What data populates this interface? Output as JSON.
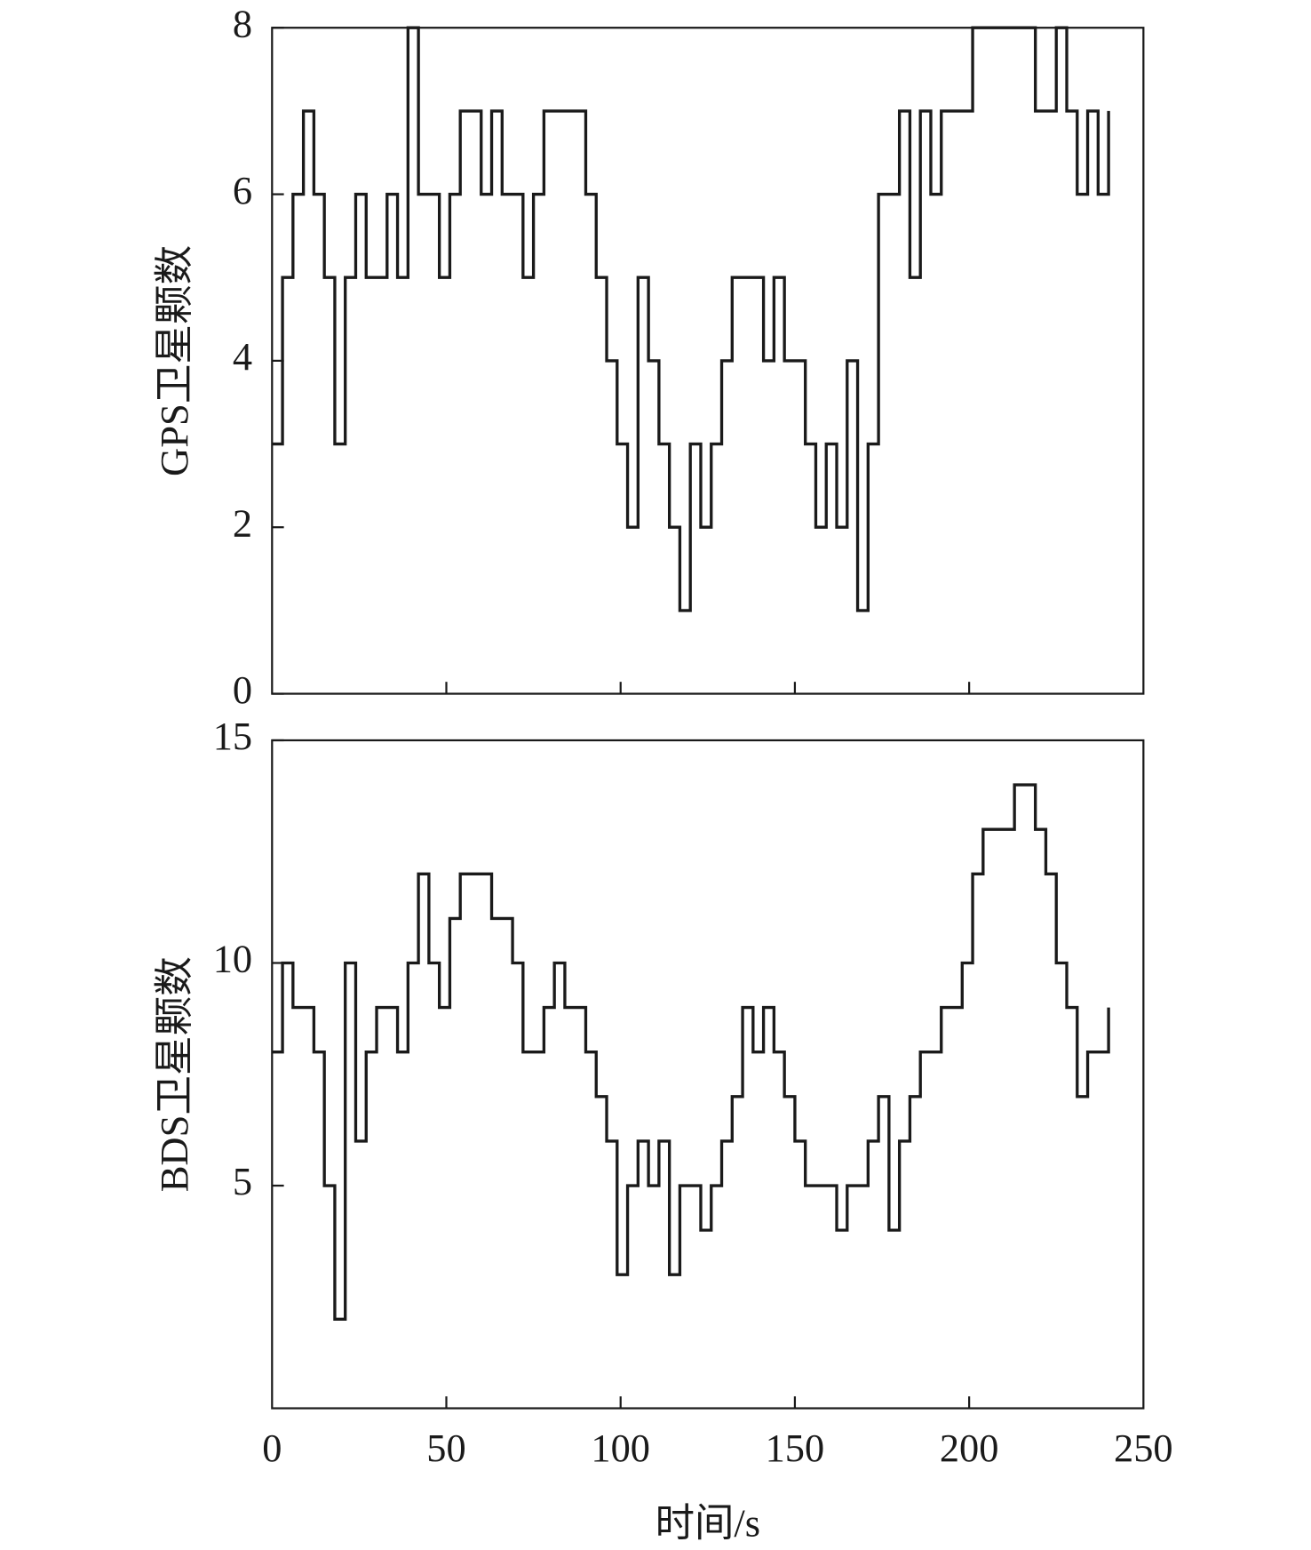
{
  "chart_data": [
    {
      "type": "step",
      "y_label": "GPS卫星颗数",
      "xlim": [
        0,
        250
      ],
      "ylim": [
        0,
        8
      ],
      "yticks": [
        0,
        2,
        4,
        6,
        8
      ],
      "series": [
        {
          "color": "#1a1a1a",
          "x": [
            0,
            3,
            6,
            9,
            12,
            15,
            18,
            21,
            24,
            27,
            30,
            33,
            36,
            39,
            42,
            45,
            48,
            51,
            54,
            57,
            60,
            63,
            66,
            69,
            72,
            75,
            78,
            81,
            84,
            87,
            90,
            93,
            96,
            99,
            102,
            105,
            108,
            111,
            114,
            117,
            120,
            123,
            126,
            129,
            132,
            135,
            138,
            141,
            144,
            147,
            150,
            153,
            156,
            159,
            162,
            165,
            168,
            171,
            174,
            177,
            180,
            183,
            186,
            189,
            192,
            195,
            198,
            201,
            204,
            207,
            210,
            213,
            216,
            219,
            222,
            225,
            228,
            231,
            234,
            237,
            240
          ],
          "values": [
            3,
            5,
            6,
            7,
            6,
            5,
            3,
            5,
            6,
            5,
            5,
            6,
            5,
            8,
            6,
            6,
            5,
            6,
            7,
            7,
            6,
            7,
            6,
            6,
            5,
            6,
            7,
            7,
            7,
            7,
            6,
            5,
            4,
            3,
            2,
            5,
            4,
            3,
            2,
            1,
            3,
            2,
            3,
            4,
            5,
            5,
            5,
            4,
            5,
            4,
            4,
            3,
            2,
            3,
            2,
            4,
            1,
            3,
            6,
            6,
            7,
            5,
            7,
            6,
            7,
            7,
            7,
            8,
            8,
            8,
            8,
            8,
            8,
            7,
            7,
            8,
            7,
            6,
            7,
            6,
            7
          ]
        }
      ]
    },
    {
      "type": "step",
      "y_label": "BDS卫星颗数",
      "x_label": "时间/s",
      "xlim": [
        0,
        250
      ],
      "ylim": [
        0,
        15
      ],
      "xticks": [
        0,
        50,
        100,
        150,
        200,
        250
      ],
      "yticks": [
        5,
        10,
        15
      ],
      "series": [
        {
          "color": "#1a1a1a",
          "x": [
            0,
            3,
            6,
            9,
            12,
            15,
            18,
            21,
            24,
            27,
            30,
            33,
            36,
            39,
            42,
            45,
            48,
            51,
            54,
            57,
            60,
            63,
            66,
            69,
            72,
            75,
            78,
            81,
            84,
            87,
            90,
            93,
            96,
            99,
            102,
            105,
            108,
            111,
            114,
            117,
            120,
            123,
            126,
            129,
            132,
            135,
            138,
            141,
            144,
            147,
            150,
            153,
            156,
            159,
            162,
            165,
            168,
            171,
            174,
            177,
            180,
            183,
            186,
            189,
            192,
            195,
            198,
            201,
            204,
            207,
            210,
            213,
            216,
            219,
            222,
            225,
            228,
            231,
            234,
            237,
            240
          ],
          "values": [
            8,
            10,
            9,
            9,
            8,
            5,
            2,
            10,
            6,
            8,
            9,
            9,
            8,
            10,
            12,
            10,
            9,
            11,
            12,
            12,
            12,
            11,
            11,
            10,
            8,
            8,
            9,
            10,
            9,
            9,
            8,
            7,
            6,
            3,
            5,
            6,
            5,
            6,
            3,
            5,
            5,
            4,
            5,
            6,
            7,
            9,
            8,
            9,
            8,
            7,
            6,
            5,
            5,
            5,
            4,
            5,
            5,
            6,
            7,
            4,
            6,
            7,
            8,
            8,
            9,
            9,
            10,
            12,
            13,
            13,
            13,
            14,
            14,
            13,
            12,
            10,
            9,
            7,
            8,
            8,
            9
          ]
        }
      ]
    }
  ]
}
